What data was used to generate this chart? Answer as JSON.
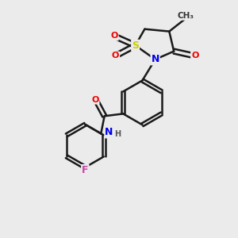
{
  "background_color": "#ebebeb",
  "bond_color": "#1a1a1a",
  "figsize": [
    3.0,
    3.0
  ],
  "dpi": 100,
  "atom_colors": {
    "S": "#cccc00",
    "N": "#0000ee",
    "O": "#ee0000",
    "F": "#cc44aa",
    "C": "#1a1a1a",
    "H": "#555555"
  },
  "layout": {
    "xlim": [
      0,
      10
    ],
    "ylim": [
      0,
      10
    ]
  }
}
